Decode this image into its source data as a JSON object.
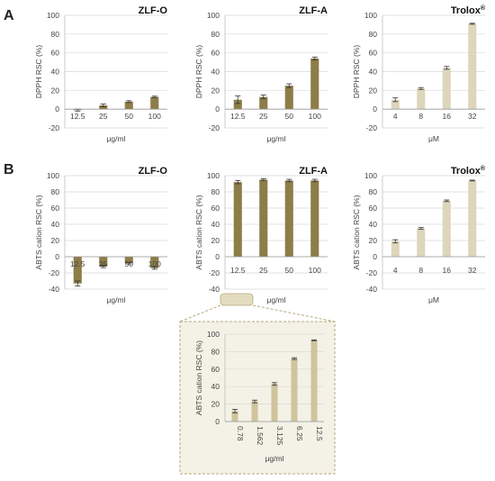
{
  "panel_labels": {
    "a": "A",
    "b": "B"
  },
  "colors": {
    "extract": "#8d7d48",
    "trolox": "#ddd6bb",
    "inset": "#cfc49d",
    "zoom_frame": "#b5a97a",
    "inset_bg": "#f4f1e6"
  },
  "chart_data": [
    {
      "id": "dpph_zlfo",
      "type": "bar",
      "title": "ZLF-O",
      "ylabel": "DPPH RSC (%)",
      "xlabel": "μg/ml",
      "categories": [
        "12.5",
        "25",
        "50",
        "100"
      ],
      "values": [
        -1,
        4,
        8,
        13
      ],
      "errors": [
        1,
        1.5,
        1,
        0.8
      ],
      "ylim": [
        -20,
        100
      ],
      "yticks": [
        "100",
        "80",
        "60",
        "40",
        "20",
        "0",
        "-20"
      ],
      "grid": true
    },
    {
      "id": "dpph_zlfa",
      "type": "bar",
      "title": "ZLF-A",
      "ylabel": "DPPH RSC (%)",
      "xlabel": "μg/ml",
      "categories": [
        "12.5",
        "25",
        "50",
        "100"
      ],
      "values": [
        10,
        13,
        25,
        54
      ],
      "errors": [
        4,
        2,
        2,
        1.5
      ],
      "ylim": [
        -20,
        100
      ],
      "yticks": [
        "100",
        "80",
        "60",
        "40",
        "20",
        "0",
        "-20"
      ],
      "grid": true
    },
    {
      "id": "dpph_trolox",
      "type": "bar",
      "title": "Trolox",
      "title_sup": "®",
      "ylabel": "DPPH RSC (%)",
      "xlabel": "μM",
      "categories": [
        "4",
        "8",
        "16",
        "32"
      ],
      "values": [
        10,
        22,
        44,
        91
      ],
      "errors": [
        2,
        1,
        1.5,
        0.5
      ],
      "ylim": [
        -20,
        100
      ],
      "yticks": [
        "100",
        "80",
        "60",
        "40",
        "20",
        "0",
        "-20"
      ],
      "grid": true
    },
    {
      "id": "abts_zlfo",
      "type": "bar",
      "title": "ZLF-O",
      "ylabel": "ABTS  cation RSC (%)",
      "xlabel": "μg/ml",
      "categories": [
        "12.5",
        "25",
        "50",
        "100"
      ],
      "values": [
        -33,
        -12,
        -8,
        -14
      ],
      "errors": [
        3,
        1.5,
        1,
        1.5
      ],
      "ylim": [
        -40,
        100
      ],
      "yticks": [
        "100",
        "80",
        "60",
        "40",
        "20",
        "0",
        "-20",
        "-40"
      ],
      "grid": true
    },
    {
      "id": "abts_zlfa",
      "type": "bar",
      "title": "ZLF-A",
      "ylabel": "ABTS  cation RSC (%)",
      "xlabel": "μg/ml",
      "categories": [
        "12.5",
        "25",
        "50",
        "100"
      ],
      "values": [
        92,
        95,
        94,
        94
      ],
      "errors": [
        2,
        1,
        1.5,
        1.5
      ],
      "ylim": [
        -40,
        100
      ],
      "yticks": [
        "100",
        "80",
        "60",
        "40",
        "20",
        "0",
        "-20",
        "-40"
      ],
      "grid": true
    },
    {
      "id": "abts_trolox",
      "type": "bar",
      "title": "Trolox",
      "title_sup": "®",
      "ylabel": "ABTS  cation RSC (%)",
      "xlabel": "μM",
      "categories": [
        "4",
        "8",
        "16",
        "32"
      ],
      "values": [
        19,
        35,
        69,
        94
      ],
      "errors": [
        2,
        1,
        1,
        0.5
      ],
      "ylim": [
        -40,
        100
      ],
      "yticks": [
        "100",
        "80",
        "60",
        "40",
        "20",
        "0",
        "-20",
        "-40"
      ],
      "grid": true
    },
    {
      "id": "abts_zlfa_low",
      "type": "bar",
      "title": "",
      "ylabel": "ABTS  cation RSC (%)",
      "xlabel": "μg/ml",
      "categories": [
        "0.78",
        "1.562",
        "3.125",
        "6.25",
        "12.5"
      ],
      "values": [
        12,
        23,
        43,
        72,
        93
      ],
      "errors": [
        2,
        1.5,
        1.5,
        1,
        0.5
      ],
      "ylim": [
        0,
        100
      ],
      "yticks": [
        "100",
        "80",
        "60",
        "40",
        "20",
        "0"
      ],
      "grid": true
    }
  ]
}
